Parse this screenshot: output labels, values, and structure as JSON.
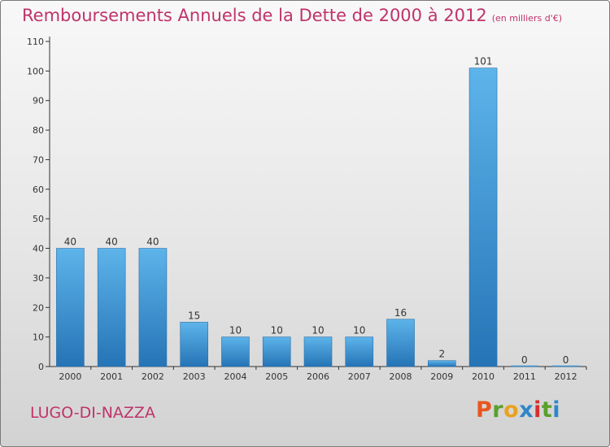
{
  "chart_data": {
    "type": "bar",
    "title": "Remboursements Annuels de la Dette de 2000 à 2012",
    "unit_note": "(en milliers d'€)",
    "categories": [
      "2000",
      "2001",
      "2002",
      "2003",
      "2004",
      "2005",
      "2006",
      "2007",
      "2008",
      "2009",
      "2010",
      "2011",
      "2012"
    ],
    "values": [
      40,
      40,
      40,
      15,
      10,
      10,
      10,
      10,
      16,
      2,
      101,
      0,
      0
    ],
    "ylim": [
      0,
      110
    ],
    "yticks": [
      0,
      10,
      20,
      30,
      40,
      50,
      60,
      70,
      80,
      90,
      100,
      110
    ],
    "grid": false,
    "bar_color": "#3a8fd4",
    "bar_color_light": "#5db4ea",
    "bar_color_dark": "#2574b6"
  },
  "commune_name": "LUGO-DI-NAZZA",
  "logo_text": "Proxiti",
  "colors": {
    "title": "#c0336a",
    "axis": "#333333"
  }
}
